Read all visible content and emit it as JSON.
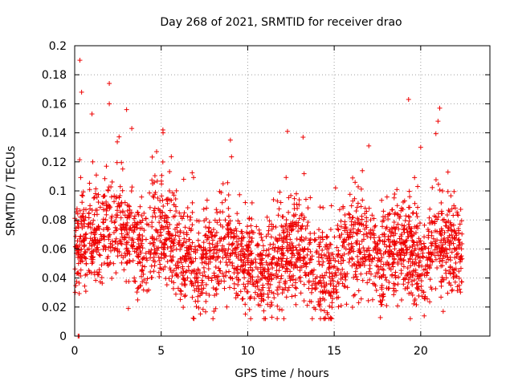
{
  "chart_data": {
    "type": "scatter",
    "title": "Day 268 of 2021, SRMTID for receiver drao",
    "xlabel": "GPS time / hours",
    "ylabel": "SRMTID / TECUs",
    "xlim": [
      0,
      24
    ],
    "ylim": [
      0,
      0.2
    ],
    "grid": true,
    "marker": "+",
    "color": "#ee0000",
    "x_ticks": [
      0,
      5,
      10,
      15,
      20
    ],
    "x_tick_labels": [
      "0",
      "5",
      "10",
      "15",
      "20"
    ],
    "y_ticks": [
      0,
      0.02,
      0.04,
      0.06,
      0.08,
      0.1,
      0.12,
      0.14,
      0.16,
      0.18,
      0.2
    ],
    "y_tick_labels": [
      "0",
      "0.02",
      "0.04",
      "0.06",
      "0.08",
      "0.1",
      "0.12",
      "0.14",
      "0.16",
      "0.18",
      "0.2"
    ],
    "x_data_range": [
      0.0,
      22.4
    ],
    "trend": [
      {
        "x": 0.0,
        "y": 0.065
      },
      {
        "x": 1.0,
        "y": 0.068
      },
      {
        "x": 2.0,
        "y": 0.075
      },
      {
        "x": 3.0,
        "y": 0.07
      },
      {
        "x": 4.0,
        "y": 0.06
      },
      {
        "x": 5.0,
        "y": 0.075
      },
      {
        "x": 6.0,
        "y": 0.06
      },
      {
        "x": 7.0,
        "y": 0.045
      },
      {
        "x": 8.0,
        "y": 0.055
      },
      {
        "x": 9.0,
        "y": 0.06
      },
      {
        "x": 10.0,
        "y": 0.05
      },
      {
        "x": 11.0,
        "y": 0.042
      },
      {
        "x": 12.0,
        "y": 0.055
      },
      {
        "x": 13.0,
        "y": 0.065
      },
      {
        "x": 14.0,
        "y": 0.04
      },
      {
        "x": 15.0,
        "y": 0.045
      },
      {
        "x": 16.0,
        "y": 0.065
      },
      {
        "x": 17.0,
        "y": 0.06
      },
      {
        "x": 18.0,
        "y": 0.055
      },
      {
        "x": 19.0,
        "y": 0.06
      },
      {
        "x": 20.0,
        "y": 0.05
      },
      {
        "x": 21.0,
        "y": 0.065
      },
      {
        "x": 22.0,
        "y": 0.06
      },
      {
        "x": 22.4,
        "y": 0.055
      }
    ],
    "notable_points": [
      {
        "x": 0.3,
        "y": 0.19
      },
      {
        "x": 0.4,
        "y": 0.168
      },
      {
        "x": 2.0,
        "y": 0.174
      },
      {
        "x": 1.0,
        "y": 0.153
      },
      {
        "x": 2.0,
        "y": 0.16
      },
      {
        "x": 3.0,
        "y": 0.156
      },
      {
        "x": 3.3,
        "y": 0.143
      },
      {
        "x": 5.1,
        "y": 0.142
      },
      {
        "x": 9.0,
        "y": 0.135
      },
      {
        "x": 12.3,
        "y": 0.141
      },
      {
        "x": 13.2,
        "y": 0.137
      },
      {
        "x": 17.0,
        "y": 0.131
      },
      {
        "x": 19.3,
        "y": 0.163
      },
      {
        "x": 20.0,
        "y": 0.13
      },
      {
        "x": 21.1,
        "y": 0.157
      },
      {
        "x": 21.0,
        "y": 0.148
      },
      {
        "x": 14.7,
        "y": 0.012
      },
      {
        "x": 11.4,
        "y": 0.013
      },
      {
        "x": 21.3,
        "y": 0.017
      },
      {
        "x": 3.1,
        "y": 0.019
      },
      {
        "x": 0.2,
        "y": 0.0
      },
      {
        "x": 0.25,
        "y": 0.0
      }
    ],
    "point_count": 2600
  }
}
